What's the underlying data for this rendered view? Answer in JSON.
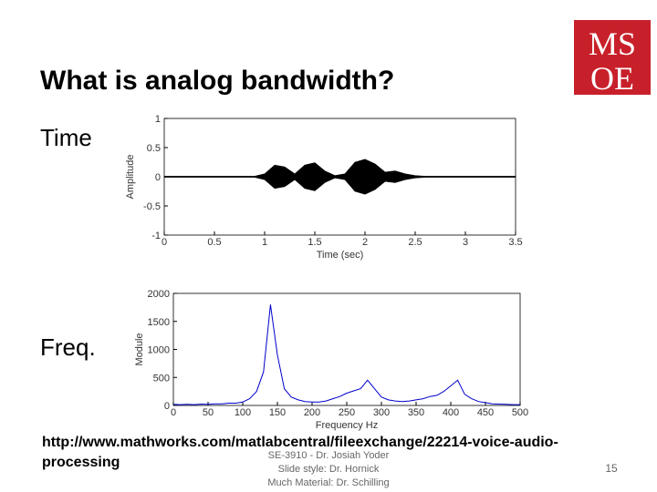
{
  "slide": {
    "title": "What is analog bandwidth?",
    "label_time": "Time",
    "label_freq": "Freq.",
    "url": "http://www.mathworks.com/matlabcentral/fileexchange/22214-voice-audio-processing",
    "footer": [
      "SE-3910 - Dr. Josiah Yoder",
      "Slide style: Dr. Hornick",
      "Much Material: Dr. Schilling"
    ],
    "page_number": "15",
    "logo": [
      "MS",
      "OE"
    ]
  },
  "chart_data": [
    {
      "type": "area",
      "xlabel": "Time (sec)",
      "ylabel": "Amplitude",
      "x": [
        0,
        0.1,
        0.2,
        0.3,
        0.4,
        0.5,
        0.6,
        0.7,
        0.8,
        0.9,
        1,
        1.1,
        1.2,
        1.3,
        1.4,
        1.5,
        1.6,
        1.7,
        1.8,
        1.9,
        2,
        2.1,
        2.2,
        2.3,
        2.4,
        2.5,
        2.6,
        2.7,
        2.8,
        2.9,
        3,
        3.1,
        3.2,
        3.3,
        3.4,
        3.5
      ],
      "values": [
        0.01,
        0.01,
        0.01,
        0.01,
        0.01,
        0.01,
        0.01,
        0.01,
        0.01,
        0.01,
        0.05,
        0.2,
        0.17,
        0.05,
        0.2,
        0.24,
        0.1,
        0.02,
        0.05,
        0.25,
        0.3,
        0.22,
        0.08,
        0.1,
        0.05,
        0.02,
        0.01,
        0.01,
        0.01,
        0.01,
        0.01,
        0.01,
        0.01,
        0.01,
        0.01,
        0.01
      ],
      "values_low": [
        -0.01,
        -0.01,
        -0.01,
        -0.01,
        -0.01,
        -0.01,
        -0.01,
        -0.01,
        -0.01,
        -0.01,
        -0.05,
        -0.2,
        -0.17,
        -0.05,
        -0.2,
        -0.24,
        -0.1,
        -0.02,
        -0.05,
        -0.25,
        -0.3,
        -0.22,
        -0.08,
        -0.1,
        -0.05,
        -0.02,
        -0.01,
        -0.01,
        -0.01,
        -0.01,
        -0.01,
        -0.01,
        -0.01,
        -0.01,
        -0.01,
        -0.01
      ],
      "color": "#000000",
      "xlim": [
        0,
        3.5
      ],
      "ylim": [
        -1,
        1
      ],
      "xticks": [
        0,
        0.5,
        1,
        1.5,
        2,
        2.5,
        3,
        3.5
      ],
      "yticks": [
        -1,
        -0.5,
        0,
        0.5,
        1
      ]
    },
    {
      "type": "line",
      "xlabel": "Frequency Hz",
      "ylabel": "Module",
      "x": [
        0,
        10,
        20,
        30,
        40,
        50,
        60,
        70,
        80,
        90,
        100,
        110,
        120,
        130,
        140,
        150,
        160,
        170,
        180,
        190,
        200,
        210,
        220,
        230,
        240,
        250,
        260,
        270,
        280,
        290,
        300,
        310,
        320,
        330,
        340,
        350,
        360,
        370,
        380,
        390,
        400,
        410,
        420,
        430,
        440,
        450,
        460,
        470,
        480,
        490,
        500
      ],
      "values": [
        20,
        15,
        20,
        15,
        25,
        20,
        30,
        30,
        40,
        40,
        60,
        120,
        250,
        600,
        1800,
        900,
        300,
        150,
        100,
        70,
        60,
        60,
        80,
        120,
        160,
        220,
        260,
        300,
        450,
        300,
        150,
        100,
        80,
        70,
        80,
        100,
        120,
        160,
        180,
        250,
        350,
        450,
        200,
        120,
        70,
        50,
        30,
        25,
        20,
        15,
        15
      ],
      "color": "#0000cc",
      "xlim": [
        0,
        500
      ],
      "ylim": [
        0,
        2000
      ],
      "xticks": [
        0,
        50,
        100,
        150,
        200,
        250,
        300,
        350,
        400,
        450,
        500
      ],
      "yticks": [
        0,
        500,
        1000,
        1500,
        2000
      ]
    }
  ]
}
